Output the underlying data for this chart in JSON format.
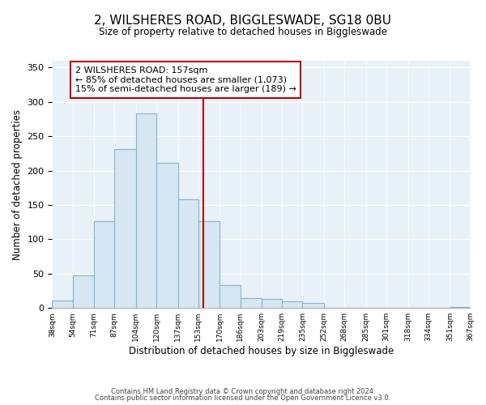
{
  "title": "2, WILSHERES ROAD, BIGGLESWADE, SG18 0BU",
  "subtitle": "Size of property relative to detached houses in Biggleswade",
  "xlabel": "Distribution of detached houses by size in Biggleswade",
  "ylabel": "Number of detached properties",
  "bar_color": "#d6e6f2",
  "bar_edge_color": "#88b4cc",
  "annotation_box_edge": "#bb0000",
  "vline_color": "#bb0000",
  "annotation_title": "2 WILSHERES ROAD: 157sqm",
  "annotation_line1": "← 85% of detached houses are smaller (1,073)",
  "annotation_line2": "15% of semi-detached houses are larger (189) →",
  "bins": [
    38,
    54,
    71,
    87,
    104,
    120,
    137,
    153,
    170,
    186,
    203,
    219,
    235,
    252,
    268,
    285,
    301,
    318,
    334,
    351,
    367
  ],
  "counts": [
    11,
    48,
    127,
    231,
    283,
    211,
    158,
    126,
    33,
    14,
    13,
    10,
    7,
    0,
    0,
    0,
    0,
    0,
    0,
    2
  ],
  "vline_x": 157,
  "ylim": [
    0,
    360
  ],
  "yticks": [
    0,
    50,
    100,
    150,
    200,
    250,
    300,
    350
  ],
  "bg_color": "#e8f0f8",
  "footer1": "Contains HM Land Registry data © Crown copyright and database right 2024.",
  "footer2": "Contains public sector information licensed under the Open Government Licence v3.0."
}
